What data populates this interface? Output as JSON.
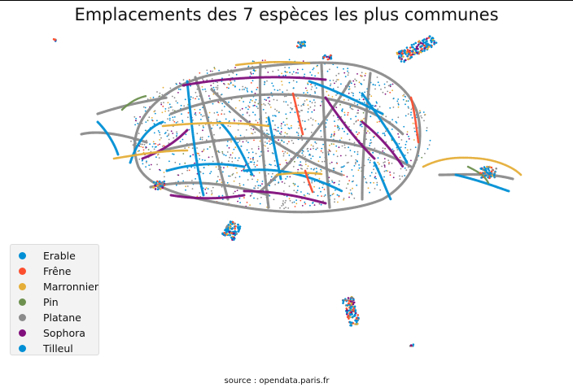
{
  "chart_data": {
    "type": "scatter",
    "title": "Emplacements des 7 espèces les plus communes",
    "xlabel": "",
    "ylabel": "",
    "axes": "off",
    "grid": false,
    "legend_position": "lower-left",
    "series": [
      {
        "name": "Erable",
        "color": "#008fd5"
      },
      {
        "name": "Frêne",
        "color": "#fc4f30"
      },
      {
        "name": "Marronnier",
        "color": "#e5ae38"
      },
      {
        "name": "Pin",
        "color": "#6d904f"
      },
      {
        "name": "Platane",
        "color": "#8b8b8b"
      },
      {
        "name": "Sophora",
        "color": "#810f7c"
      },
      {
        "name": "Tilleul",
        "color": "#008fd5"
      }
    ],
    "annotation": "source : opendata.paris.fr"
  }
}
